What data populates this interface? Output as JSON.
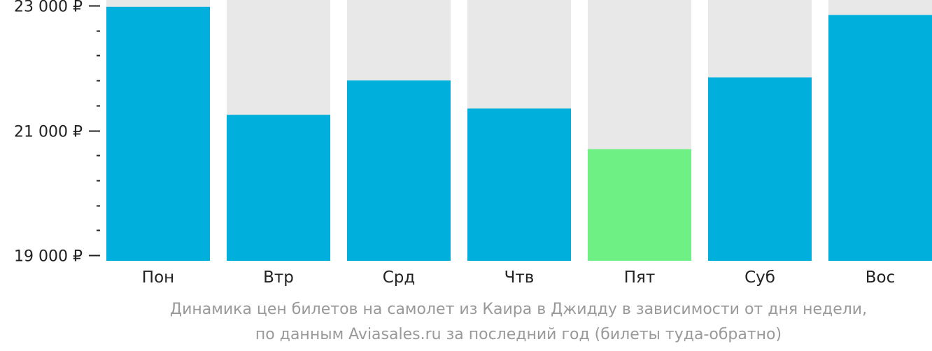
{
  "chart_data": {
    "type": "bar",
    "categories": [
      "Пон",
      "Втр",
      "Срд",
      "Чтв",
      "Пят",
      "Суб",
      "Вос"
    ],
    "values": [
      22980,
      21250,
      21800,
      21350,
      20700,
      21850,
      22850
    ],
    "highlight_index": 4,
    "ylim": [
      19000,
      23000
    ],
    "yticks": [
      {
        "value": 23000,
        "label": "23 000 ₽"
      },
      {
        "value": 21000,
        "label": "21 000 ₽"
      },
      {
        "value": 19000,
        "label": "19 000 ₽"
      }
    ],
    "minor_tick_step": 400,
    "colors": {
      "bar": "#00afdc",
      "highlight": "#6ef085",
      "background_column": "#e8e8e8",
      "axis": "#222222"
    },
    "grid": false,
    "legend": "none"
  },
  "caption": {
    "line1": "Динамика цен билетов на самолет из Каира в Джидду в зависимости от дня недели,",
    "line2": "по данным Aviasales.ru за последний год (билеты туда-обратно)"
  }
}
